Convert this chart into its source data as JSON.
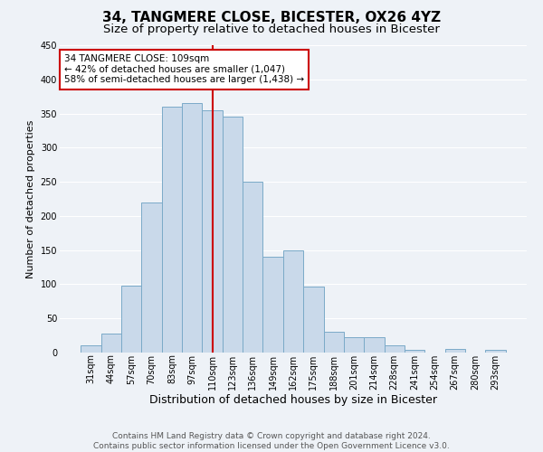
{
  "title": "34, TANGMERE CLOSE, BICESTER, OX26 4YZ",
  "subtitle": "Size of property relative to detached houses in Bicester",
  "xlabel": "Distribution of detached houses by size in Bicester",
  "ylabel": "Number of detached properties",
  "bar_labels": [
    "31sqm",
    "44sqm",
    "57sqm",
    "70sqm",
    "83sqm",
    "97sqm",
    "110sqm",
    "123sqm",
    "136sqm",
    "149sqm",
    "162sqm",
    "175sqm",
    "188sqm",
    "201sqm",
    "214sqm",
    "228sqm",
    "241sqm",
    "254sqm",
    "267sqm",
    "280sqm",
    "293sqm"
  ],
  "bar_values": [
    10,
    28,
    98,
    220,
    360,
    365,
    355,
    345,
    250,
    140,
    150,
    96,
    30,
    22,
    23,
    11,
    4,
    0,
    5,
    0,
    4
  ],
  "bar_color": "#c9d9ea",
  "bar_edge_color": "#7aaac8",
  "vline_x": 6,
  "vline_color": "#cc0000",
  "annotation_text": "34 TANGMERE CLOSE: 109sqm\n← 42% of detached houses are smaller (1,047)\n58% of semi-detached houses are larger (1,438) →",
  "annotation_box_color": "#ffffff",
  "annotation_box_edge_color": "#cc0000",
  "ylim": [
    0,
    450
  ],
  "yticks": [
    0,
    50,
    100,
    150,
    200,
    250,
    300,
    350,
    400,
    450
  ],
  "footer_line1": "Contains HM Land Registry data © Crown copyright and database right 2024.",
  "footer_line2": "Contains public sector information licensed under the Open Government Licence v3.0.",
  "background_color": "#eef2f7",
  "grid_color": "#ffffff",
  "title_fontsize": 11,
  "subtitle_fontsize": 9.5,
  "xlabel_fontsize": 9,
  "ylabel_fontsize": 8,
  "tick_fontsize": 7,
  "annotation_fontsize": 7.5,
  "footer_fontsize": 6.5
}
